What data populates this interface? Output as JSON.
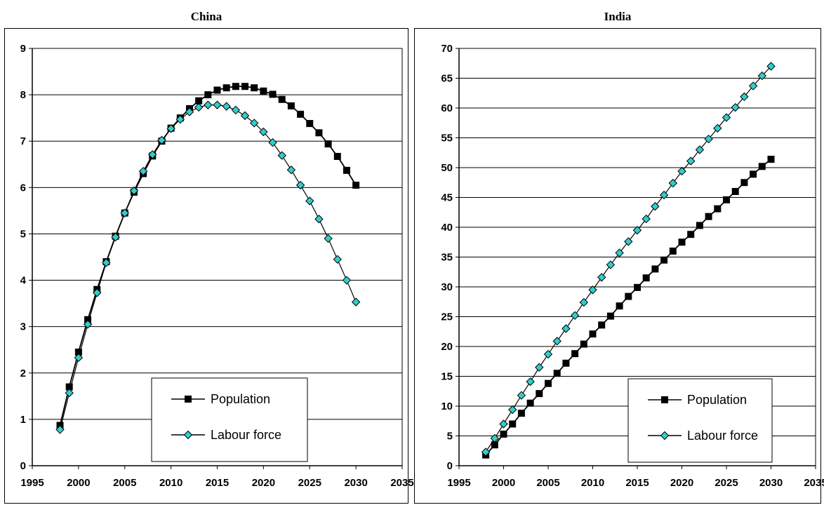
{
  "chart_data": [
    {
      "type": "line",
      "title": "China",
      "xlabel": "",
      "ylabel": "",
      "xlim": [
        1995,
        2035
      ],
      "ylim": [
        0,
        9
      ],
      "xticks": [
        1995,
        2000,
        2005,
        2010,
        2015,
        2020,
        2025,
        2030,
        2035
      ],
      "yticks": [
        0,
        1,
        2,
        3,
        4,
        5,
        6,
        7,
        8,
        9
      ],
      "grid": "horizontal",
      "legend": "bottom-right",
      "x": [
        1998,
        1999,
        2000,
        2001,
        2002,
        2003,
        2004,
        2005,
        2006,
        2007,
        2008,
        2009,
        2010,
        2011,
        2012,
        2013,
        2014,
        2015,
        2016,
        2017,
        2018,
        2019,
        2020,
        2021,
        2022,
        2023,
        2024,
        2025,
        2026,
        2027,
        2028,
        2029,
        2030
      ],
      "series": [
        {
          "name": "Population",
          "marker": "square",
          "color": "#000000",
          "values": [
            0.87,
            1.7,
            2.45,
            3.15,
            3.8,
            4.4,
            4.95,
            5.45,
            5.9,
            6.3,
            6.68,
            7.0,
            7.28,
            7.5,
            7.7,
            7.87,
            8.0,
            8.1,
            8.15,
            8.18,
            8.18,
            8.15,
            8.08,
            8.01,
            7.9,
            7.76,
            7.58,
            7.38,
            7.18,
            6.94,
            6.67,
            6.37,
            6.05
          ]
        },
        {
          "name": "Labour force",
          "marker": "diamond",
          "color": "#33CCCC",
          "values": [
            0.78,
            1.57,
            2.33,
            3.05,
            3.73,
            4.38,
            4.93,
            5.45,
            5.93,
            6.35,
            6.71,
            7.02,
            7.27,
            7.47,
            7.63,
            7.73,
            7.78,
            7.78,
            7.75,
            7.67,
            7.55,
            7.39,
            7.2,
            6.97,
            6.69,
            6.38,
            6.05,
            5.71,
            5.32,
            4.9,
            4.45,
            4.0,
            3.53
          ]
        }
      ]
    },
    {
      "type": "line",
      "title": "India",
      "xlabel": "",
      "ylabel": "",
      "xlim": [
        1995,
        2035
      ],
      "ylim": [
        0,
        70
      ],
      "xticks": [
        1995,
        2000,
        2005,
        2010,
        2015,
        2020,
        2025,
        2030,
        2035
      ],
      "yticks": [
        0,
        5,
        10,
        15,
        20,
        25,
        30,
        35,
        40,
        45,
        50,
        55,
        60,
        65,
        70
      ],
      "grid": "horizontal",
      "legend": "bottom-right",
      "x": [
        1998,
        1999,
        2000,
        2001,
        2002,
        2003,
        2004,
        2005,
        2006,
        2007,
        2008,
        2009,
        2010,
        2011,
        2012,
        2013,
        2014,
        2015,
        2016,
        2017,
        2018,
        2019,
        2020,
        2021,
        2022,
        2023,
        2024,
        2025,
        2026,
        2027,
        2028,
        2029,
        2030
      ],
      "series": [
        {
          "name": "Population",
          "marker": "square",
          "color": "#000000",
          "values": [
            1.8,
            3.5,
            5.3,
            7.0,
            8.8,
            10.5,
            12.1,
            13.8,
            15.5,
            17.2,
            18.8,
            20.4,
            22.1,
            23.6,
            25.1,
            26.8,
            28.4,
            29.9,
            31.5,
            33.0,
            34.5,
            36.0,
            37.5,
            38.8,
            40.3,
            41.8,
            43.1,
            44.6,
            46.0,
            47.5,
            48.9,
            50.2,
            51.4
          ]
        },
        {
          "name": "Labour force",
          "marker": "diamond",
          "color": "#33CCCC",
          "values": [
            2.3,
            4.6,
            7.0,
            9.4,
            11.8,
            14.1,
            16.5,
            18.7,
            20.9,
            23.0,
            25.2,
            27.4,
            29.5,
            31.6,
            33.7,
            35.7,
            37.6,
            39.5,
            41.4,
            43.5,
            45.4,
            47.4,
            49.4,
            51.1,
            53.0,
            54.8,
            56.6,
            58.4,
            60.1,
            61.9,
            63.7,
            65.4,
            67.0
          ]
        }
      ]
    }
  ]
}
